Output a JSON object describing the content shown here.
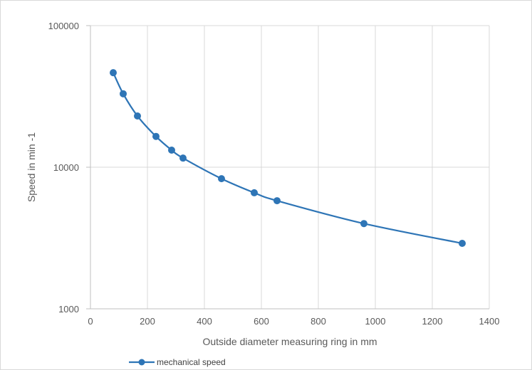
{
  "chart_data": {
    "type": "line",
    "xlabel": "Outside diameter measuring ring in mm",
    "ylabel": "Speed in min -1",
    "xlim": [
      0,
      1400
    ],
    "ylim": [
      1000,
      100000
    ],
    "yscale": "log",
    "x_ticks": [
      "0",
      "200",
      "400",
      "600",
      "800",
      "1000",
      "1200",
      "1400"
    ],
    "y_ticks": [
      "1000",
      "10000",
      "100000"
    ],
    "grid": true,
    "legend_position": "bottom-left",
    "series": [
      {
        "name": "mechanical speed",
        "color": "#2e75b6",
        "x": [
          80,
          115,
          165,
          230,
          285,
          325,
          460,
          575,
          655,
          960,
          1305
        ],
        "y": [
          46500,
          33000,
          23000,
          16500,
          13200,
          11600,
          8300,
          6600,
          5800,
          4000,
          2900
        ]
      }
    ]
  }
}
